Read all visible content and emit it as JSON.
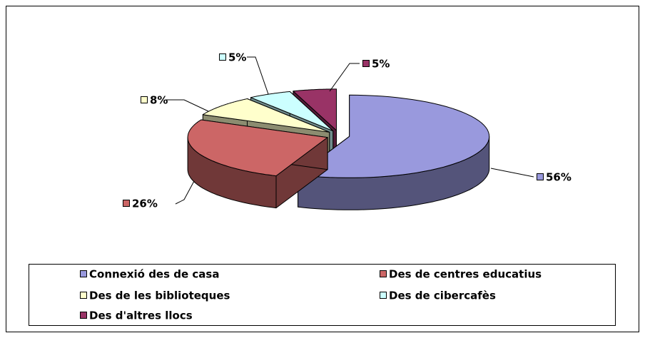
{
  "chart_data": {
    "type": "pie",
    "categories": [
      "Connexió des de casa",
      "Des de centres educatius",
      "Des de les biblioteques",
      "Des de cibercafès",
      "Des d'altres llocs"
    ],
    "values": [
      56,
      26,
      8,
      5,
      5
    ],
    "value_labels": [
      "56%",
      "26%",
      "8%",
      "5%",
      "5%"
    ],
    "colors": [
      "#9999dd",
      "#cc6666",
      "#ffffcc",
      "#ccffff",
      "#993366"
    ],
    "legend": "bottom"
  }
}
